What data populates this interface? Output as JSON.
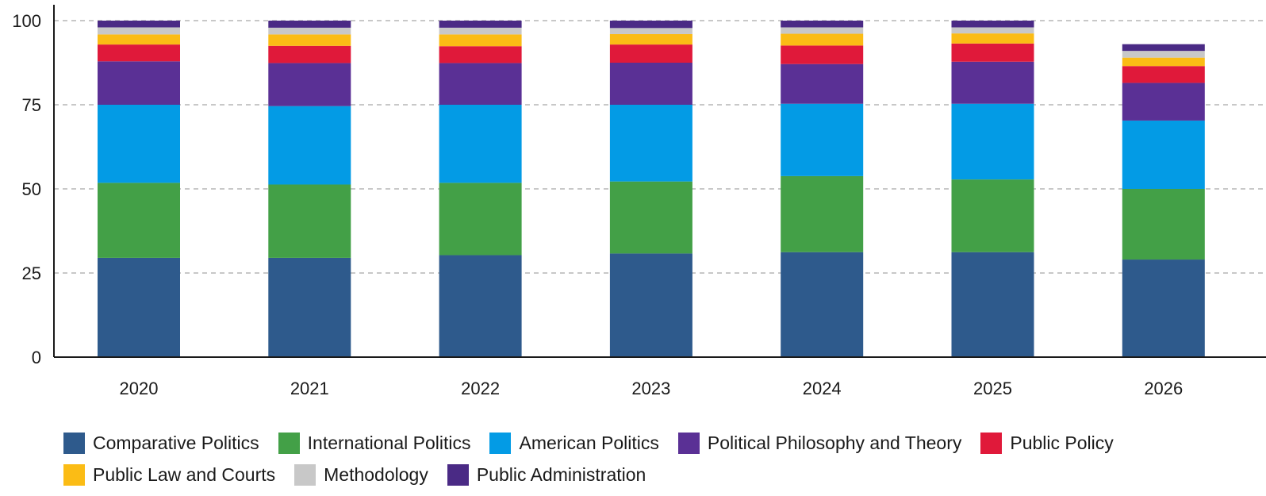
{
  "chart_data": {
    "type": "bar",
    "stacked": true,
    "title": "",
    "xlabel": "",
    "ylabel": "",
    "ylim": [
      0,
      100
    ],
    "yticks": [
      0,
      25,
      50,
      75,
      100
    ],
    "grid": "horizontal-dashed",
    "legend_position": "bottom",
    "categories": [
      "2020",
      "2021",
      "2022",
      "2023",
      "2024",
      "2025",
      "2026"
    ],
    "series": [
      {
        "name": "Comparative Politics",
        "color": "#2e5a8c",
        "values": [
          29.5,
          29.5,
          30.3,
          30.8,
          31.2,
          31.2,
          29.0
        ]
      },
      {
        "name": "International Politics",
        "color": "#43a047",
        "values": [
          22.3,
          21.8,
          21.5,
          21.4,
          22.6,
          21.6,
          21.0
        ]
      },
      {
        "name": "American Politics",
        "color": "#039be5",
        "values": [
          23.2,
          23.3,
          23.2,
          22.8,
          21.5,
          22.5,
          20.3
        ]
      },
      {
        "name": "Political Philosophy and Theory",
        "color": "#5a3095",
        "values": [
          12.9,
          12.8,
          12.4,
          12.5,
          11.8,
          12.5,
          11.2
        ]
      },
      {
        "name": "Public Policy",
        "color": "#e0193a",
        "values": [
          5.0,
          5.1,
          5.0,
          5.4,
          5.5,
          5.4,
          5.0
        ]
      },
      {
        "name": "Public Law and Courts",
        "color": "#fbbc15",
        "values": [
          3.0,
          3.4,
          3.5,
          3.1,
          3.5,
          3.0,
          2.5
        ]
      },
      {
        "name": "Methodology",
        "color": "#c8c8c8",
        "values": [
          2.1,
          2.0,
          2.0,
          1.8,
          1.9,
          1.8,
          2.0
        ]
      },
      {
        "name": "Public Administration",
        "color": "#4a2a85",
        "values": [
          2.0,
          2.1,
          2.1,
          2.2,
          2.0,
          2.0,
          2.0
        ]
      }
    ]
  }
}
